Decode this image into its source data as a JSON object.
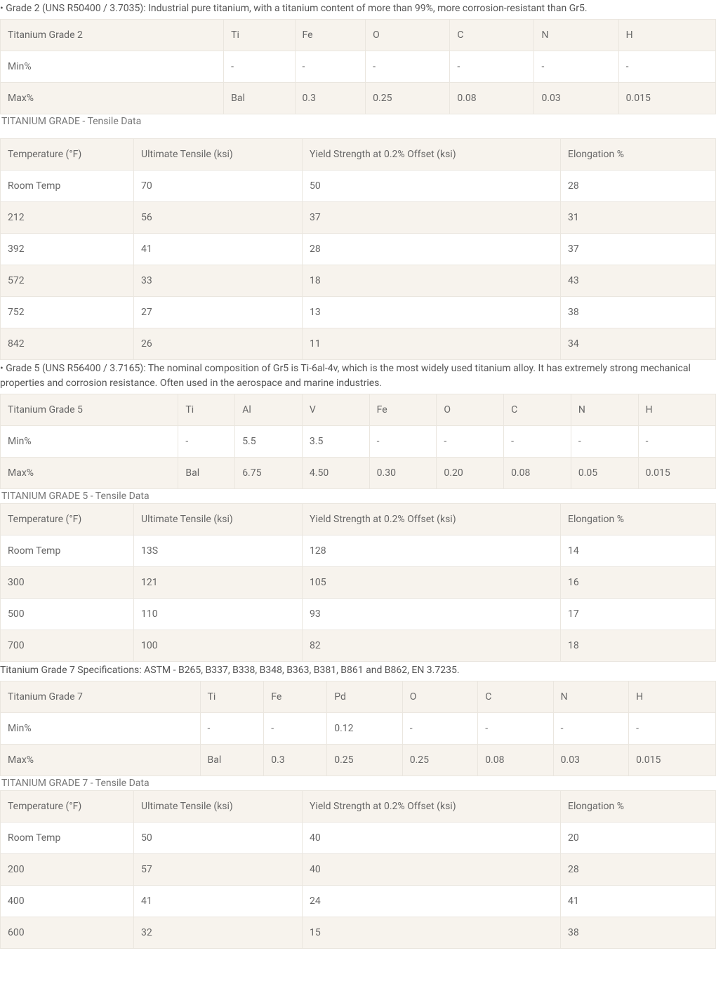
{
  "colors": {
    "header_bg": "#f7f3ed",
    "row_alt_bg": "#f7f3ed",
    "row_bg": "#ffffff",
    "border": "#eae6df",
    "text": "#666666",
    "intro_text": "#555555"
  },
  "sections": [
    {
      "intro": "• Grade 2 (UNS R50400 / 3.7035): Industrial pure titanium, with a titanium content of more than 99%, more corrosion-resistant than Gr5.",
      "comp": {
        "headers": [
          "Titanium Grade 2",
          "Ti",
          "Fe",
          "O",
          "C",
          "N",
          "H"
        ],
        "rows": [
          [
            "Min%",
            "-",
            "-",
            "-",
            "-",
            "-",
            "-"
          ],
          [
            "Max%",
            "Bal",
            "0.3",
            "0.25",
            "0.08",
            "0.03",
            "0.015"
          ]
        ]
      },
      "tensile_caption": "TITANIUM GRADE - Tensile Data",
      "tensile_spacer": true,
      "tensile": {
        "headers": [
          "Temperature (°F)",
          "Ultimate Tensile (ksi)",
          "Yield Strength at 0.2% Offset (ksi)",
          "Elongation %"
        ],
        "rows": [
          [
            "Room Temp",
            "70",
            "50",
            "28"
          ],
          [
            "212",
            "56",
            "37",
            "31"
          ],
          [
            "392",
            "41",
            "28",
            "37"
          ],
          [
            "572",
            "33",
            "18",
            "43"
          ],
          [
            "752",
            "27",
            "13",
            "38"
          ],
          [
            "842",
            "26",
            "11",
            "34"
          ]
        ]
      }
    },
    {
      "intro": "• Grade 5 (UNS R56400 / 3.7165): The nominal composition of Gr5 is Ti-6al-4v, which is the most widely used titanium alloy. It has extremely strong mechanical properties and corrosion resistance. Often used in the aerospace and marine industries.",
      "comp": {
        "headers": [
          "Titanium Grade 5",
          "Ti",
          "Al",
          "V",
          "Fe",
          "O",
          "C",
          "N",
          "H"
        ],
        "rows": [
          [
            "Min%",
            "-",
            "5.5",
            "3.5",
            "-",
            "-",
            "-",
            "-",
            "-"
          ],
          [
            "Max%",
            "Bal",
            "6.75",
            "4.50",
            "0.30",
            "0.20",
            "0.08",
            "0.05",
            "0.015"
          ]
        ]
      },
      "tensile_caption": "TITANIUM GRADE 5 - Tensile Data",
      "tensile_spacer": false,
      "tensile": {
        "headers": [
          "Temperature (°F)",
          "Ultimate Tensile (ksi)",
          "Yield Strength at 0.2% Offset (ksi)",
          "Elongation %"
        ],
        "rows": [
          [
            "Room Temp",
            "13S",
            "128",
            "14"
          ],
          [
            "300",
            "121",
            "105",
            "16"
          ],
          [
            "500",
            "110",
            "93",
            "17"
          ],
          [
            "700",
            "100",
            "82",
            "18"
          ]
        ]
      }
    },
    {
      "intro": "Titanium Grade 7 Specifications: ASTM - B265, B337, B338, B348, B363, B381, B861 and B862, EN 3.7235.",
      "comp": {
        "headers": [
          "Titanium Grade 7",
          "Ti",
          "Fe",
          "Pd",
          "O",
          "C",
          "N",
          "H"
        ],
        "rows": [
          [
            "Min%",
            "-",
            "-",
            "0.12",
            "-",
            "-",
            "-",
            "-"
          ],
          [
            "Max%",
            "Bal",
            "0.3",
            "0.25",
            "0.25",
            "0.08",
            "0.03",
            "0.015"
          ]
        ]
      },
      "tensile_caption": "TITANIUM GRADE 7 - Tensile Data",
      "tensile_spacer": false,
      "tensile": {
        "headers": [
          "Temperature (°F)",
          "Ultimate Tensile (ksi)",
          "Yield Strength at 0.2% Offset (ksi)",
          "Elongation %"
        ],
        "rows": [
          [
            "Room Temp",
            "50",
            "40",
            "20"
          ],
          [
            "200",
            "57",
            "40",
            "28"
          ],
          [
            "400",
            "41",
            "24",
            "41"
          ],
          [
            "600",
            "32",
            "15",
            "38"
          ]
        ]
      }
    }
  ]
}
